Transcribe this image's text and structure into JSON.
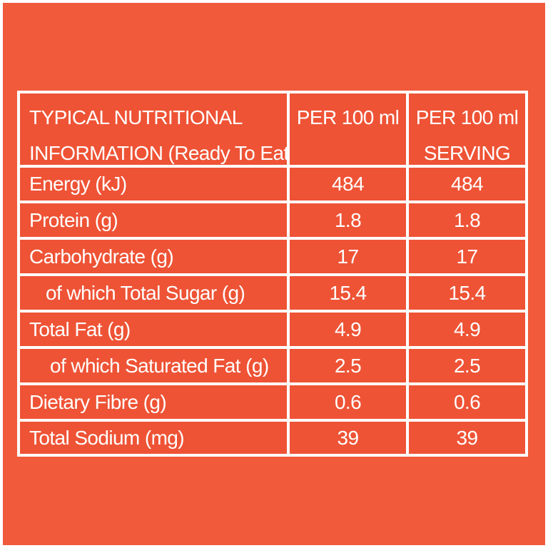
{
  "table": {
    "header": {
      "label_line1": "TYPICAL NUTRITIONAL",
      "label_line2": "INFORMATION (Ready To Eat)",
      "col1_line1": "PER 100 ml",
      "col2_line1": "PER 100 ml",
      "col2_line2": "SERVING"
    },
    "rows": [
      {
        "label": "Energy (kJ)",
        "per100": "484",
        "serving": "484"
      },
      {
        "label": "Protein (g)",
        "per100": "1.8",
        "serving": "1.8"
      },
      {
        "label": "Carbohydrate (g)",
        "per100": "17",
        "serving": "17"
      },
      {
        "label": "of which Total Sugar (g)",
        "per100": "15.4",
        "serving": "15.4"
      },
      {
        "label": "Total Fat (g)",
        "per100": "4.9",
        "serving": "4.9"
      },
      {
        "label": "of which Saturated Fat (g)",
        "per100": "2.5",
        "serving": "2.5"
      },
      {
        "label": "Dietary Fibre (g)",
        "per100": "0.6",
        "serving": "0.6"
      },
      {
        "label": "Total Sodium (mg)",
        "per100": "39",
        "serving": "39"
      }
    ]
  },
  "colors": {
    "background": "#f15a3a",
    "cell": "#ee5335",
    "grid": "#ffffff",
    "text": "#ffffff"
  }
}
